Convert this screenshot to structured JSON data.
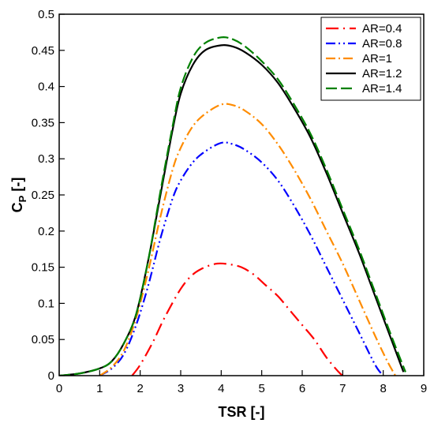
{
  "chart_data": {
    "type": "line",
    "xlabel": "TSR [-]",
    "ylabel_main": "C",
    "ylabel_sub": "P",
    "ylabel_suffix": " [-]",
    "xlim": [
      0,
      9
    ],
    "ylim": [
      0,
      0.5
    ],
    "xticks": [
      0,
      1,
      2,
      3,
      4,
      5,
      6,
      7,
      8,
      9
    ],
    "yticks": [
      0,
      0.05,
      0.1,
      0.15,
      0.2,
      0.25,
      0.3,
      0.35,
      0.4,
      0.45,
      0.5
    ],
    "ytick_labels": [
      "0",
      "0.05",
      "0.1",
      "0.15",
      "0.2",
      "0.25",
      "0.3",
      "0.35",
      "0.4",
      "0.45",
      "0.5"
    ],
    "legend_position": "top-right",
    "series": [
      {
        "name": "AR=0.4",
        "color": "#ff0000",
        "dash": "dash-dot-long",
        "x": [
          1.8,
          2.0,
          2.3,
          2.6,
          3.0,
          3.3,
          3.6,
          3.9,
          4.2,
          4.5,
          4.8,
          5.1,
          5.4,
          5.7,
          6.0,
          6.3,
          6.6,
          6.9,
          7.0
        ],
        "y": [
          0.0,
          0.015,
          0.045,
          0.08,
          0.12,
          0.14,
          0.15,
          0.155,
          0.154,
          0.15,
          0.14,
          0.125,
          0.11,
          0.09,
          0.07,
          0.05,
          0.025,
          0.005,
          0.0
        ]
      },
      {
        "name": "AR=0.8",
        "color": "#0000ff",
        "dash": "dash-dot-dot",
        "x": [
          1.0,
          1.3,
          1.6,
          1.9,
          2.2,
          2.5,
          2.8,
          3.0,
          3.3,
          3.6,
          4.0,
          4.3,
          4.6,
          5.0,
          5.4,
          5.8,
          6.2,
          6.6,
          7.0,
          7.4,
          7.8,
          8.0
        ],
        "y": [
          0.0,
          0.01,
          0.03,
          0.07,
          0.125,
          0.19,
          0.245,
          0.27,
          0.295,
          0.31,
          0.322,
          0.32,
          0.312,
          0.295,
          0.27,
          0.235,
          0.195,
          0.15,
          0.105,
          0.06,
          0.015,
          0.0
        ]
      },
      {
        "name": "AR=1",
        "color": "#ff8c00",
        "dash": "dash-dot",
        "x": [
          1.0,
          1.3,
          1.6,
          1.9,
          2.2,
          2.5,
          2.8,
          3.0,
          3.3,
          3.6,
          4.0,
          4.3,
          4.6,
          5.0,
          5.4,
          5.8,
          6.2,
          6.6,
          7.0,
          7.4,
          7.8,
          8.1,
          8.3
        ],
        "y": [
          0.0,
          0.012,
          0.035,
          0.08,
          0.145,
          0.22,
          0.285,
          0.315,
          0.345,
          0.362,
          0.375,
          0.374,
          0.366,
          0.348,
          0.32,
          0.285,
          0.245,
          0.2,
          0.155,
          0.105,
          0.055,
          0.02,
          0.0
        ]
      },
      {
        "name": "AR=1.2",
        "color": "#000000",
        "dash": "solid",
        "x": [
          0.0,
          0.5,
          1.0,
          1.3,
          1.6,
          1.9,
          2.2,
          2.5,
          2.8,
          3.0,
          3.3,
          3.6,
          4.0,
          4.3,
          4.6,
          5.0,
          5.4,
          5.8,
          6.2,
          6.6,
          7.0,
          7.4,
          7.8,
          8.2,
          8.5
        ],
        "y": [
          0.0,
          0.003,
          0.01,
          0.02,
          0.045,
          0.085,
          0.16,
          0.25,
          0.34,
          0.39,
          0.43,
          0.45,
          0.457,
          0.455,
          0.447,
          0.43,
          0.405,
          0.37,
          0.33,
          0.28,
          0.225,
          0.17,
          0.11,
          0.05,
          0.005
        ]
      },
      {
        "name": "AR=1.4",
        "color": "#008000",
        "dash": "long-dash",
        "x": [
          0.0,
          0.5,
          1.0,
          1.3,
          1.6,
          1.9,
          2.2,
          2.5,
          2.8,
          3.0,
          3.3,
          3.6,
          4.0,
          4.3,
          4.6,
          5.0,
          5.4,
          5.8,
          6.2,
          6.6,
          7.0,
          7.4,
          7.8,
          8.2,
          8.55
        ],
        "y": [
          0.0,
          0.003,
          0.01,
          0.02,
          0.045,
          0.085,
          0.16,
          0.255,
          0.345,
          0.398,
          0.44,
          0.46,
          0.468,
          0.465,
          0.455,
          0.435,
          0.41,
          0.375,
          0.335,
          0.285,
          0.23,
          0.175,
          0.115,
          0.055,
          0.005
        ]
      }
    ]
  }
}
